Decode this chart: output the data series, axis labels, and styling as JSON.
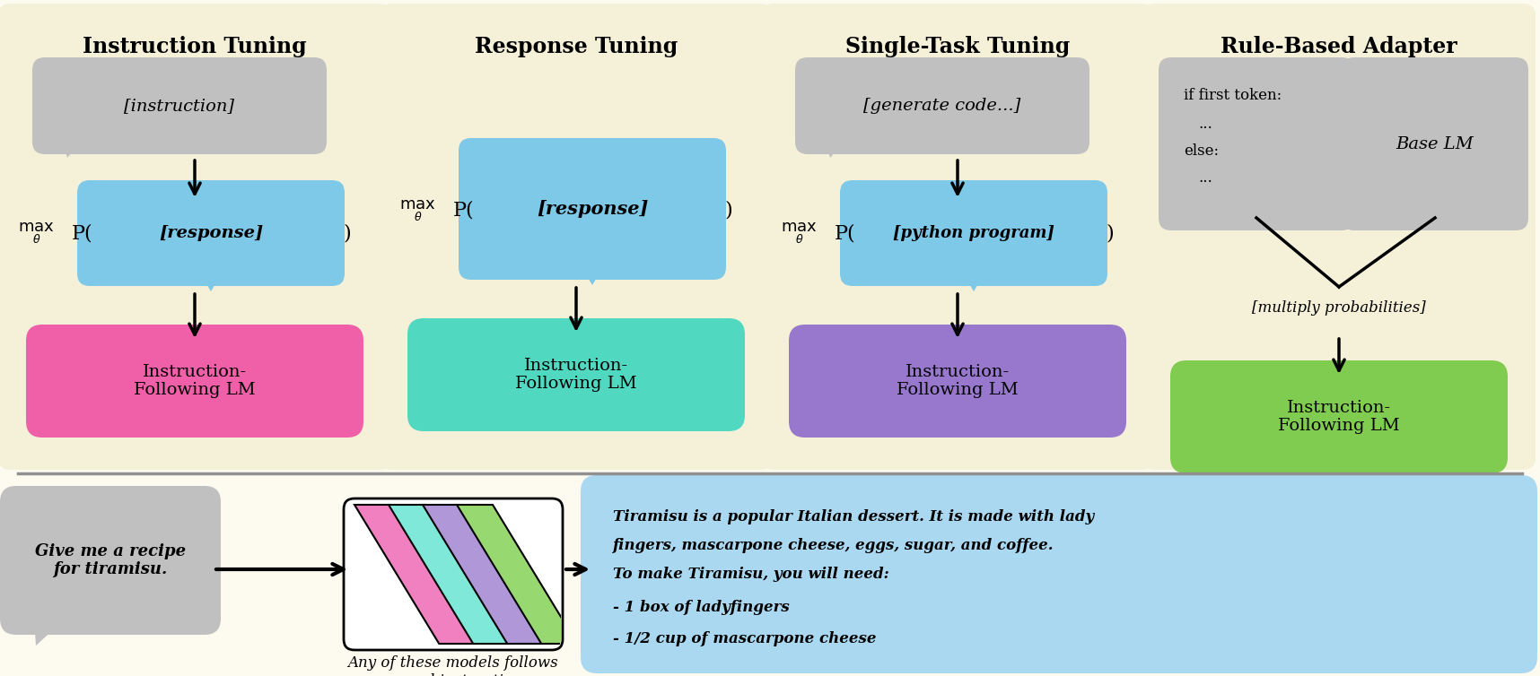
{
  "bg_color": "#fdfaf0",
  "panel_bg": "#f5f0d8",
  "bubble_gray": "#c0c0c0",
  "bubble_blue": "#7ec8e8",
  "lm_pink": "#f060a8",
  "lm_cyan": "#50d8c0",
  "lm_purple": "#9878cc",
  "lm_green": "#80cc50",
  "titles": [
    "Instruction Tuning",
    "Response Tuning",
    "Single-Task Tuning",
    "Rule-Based Adapter"
  ],
  "instruction_text": "[instruction]",
  "response_text": "[response]",
  "generate_text": "[generate code...]",
  "python_text": "[python program]",
  "lm_label": "Instruction-\nFollowing LM",
  "base_lm_text": "Base LM",
  "multiply_text": "[multiply probabilities]",
  "bottom_input": "Give me a recipe\nfor tiramisu.",
  "bottom_caption": "Any of these models follows\ngeneral instructions",
  "bottom_output_line1": "Tiramisu is a popular Italian dessert. It is made with lady",
  "bottom_output_line2": "fingers, mascarpone cheese, eggs, sugar, and coffee.",
  "bottom_output_line3": "To make Tiramisu, you will need:",
  "bottom_output_line4": "- 1 box of ladyfingers",
  "bottom_output_line5": "- 1/2 cup of mascarpone cheese",
  "stripe_colors": [
    "#f080c0",
    "#80e8d8",
    "#b098d8",
    "#98d870"
  ],
  "output_bg": "#aad8f0",
  "sep_color": "#909090"
}
